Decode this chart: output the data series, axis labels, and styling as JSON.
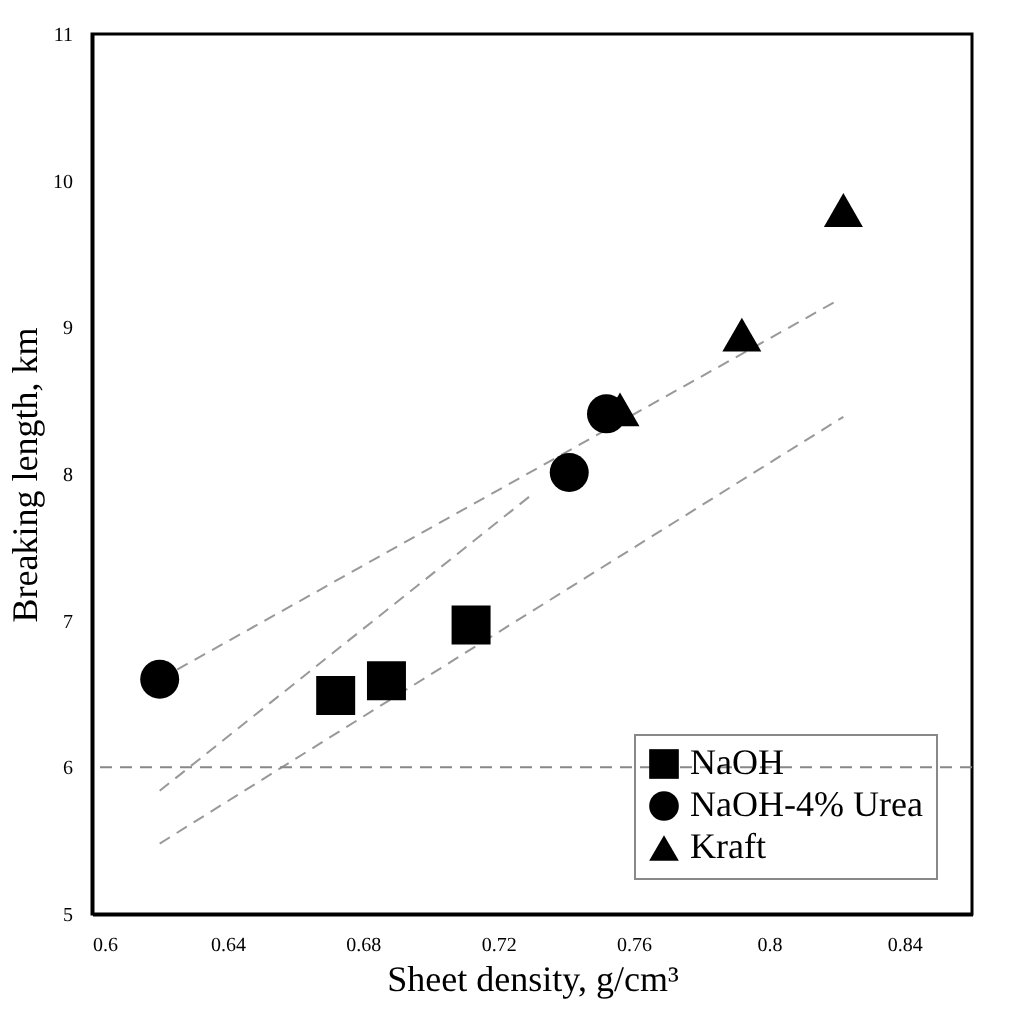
{
  "chart_data": {
    "type": "scatter",
    "xlabel": "Sheet density, g/cm³",
    "ylabel": "Breaking length, km",
    "xlim": [
      0.6,
      0.86
    ],
    "xticks": [
      0.6,
      0.64,
      0.68,
      0.72,
      0.76,
      0.8,
      0.84
    ],
    "ylim": [
      5,
      11
    ],
    "yticks": [
      5,
      6,
      7,
      8,
      9,
      10,
      11
    ],
    "grid": false,
    "legend": "bottom right",
    "ref_lines": [
      {
        "axis": "y",
        "value": 6,
        "color": "#888888",
        "line_style": "dashed"
      }
    ],
    "series": [
      {
        "name": "NaOH",
        "color": "#000000",
        "marker": "square",
        "x": [
          0.672,
          0.687,
          0.712
        ],
        "values": [
          6.49,
          6.59,
          6.97
        ]
      },
      {
        "name": "NaOH-4% Urea",
        "color": "#000000",
        "marker": "circle",
        "x": [
          0.62,
          0.741,
          0.752
        ],
        "values": [
          6.6,
          8.01,
          8.41
        ]
      },
      {
        "name": "Kraft",
        "color": "#000000",
        "marker": "triangle",
        "x": [
          0.756,
          0.792,
          0.822
        ],
        "values": [
          8.44,
          8.95,
          9.8
        ]
      },
      {
        "type": "line",
        "color": "#999999",
        "line_style": "dashed",
        "x": [
          0.62,
          0.82
        ],
        "values": [
          6.6,
          9.18
        ]
      },
      {
        "type": "line",
        "color": "#999999",
        "line_style": "dashed",
        "x": [
          0.62,
          0.73
        ],
        "values": [
          5.84,
          7.86
        ]
      },
      {
        "type": "line",
        "color": "#999999",
        "line_style": "dashed",
        "x": [
          0.62,
          0.822
        ],
        "values": [
          5.48,
          8.39
        ]
      }
    ]
  }
}
